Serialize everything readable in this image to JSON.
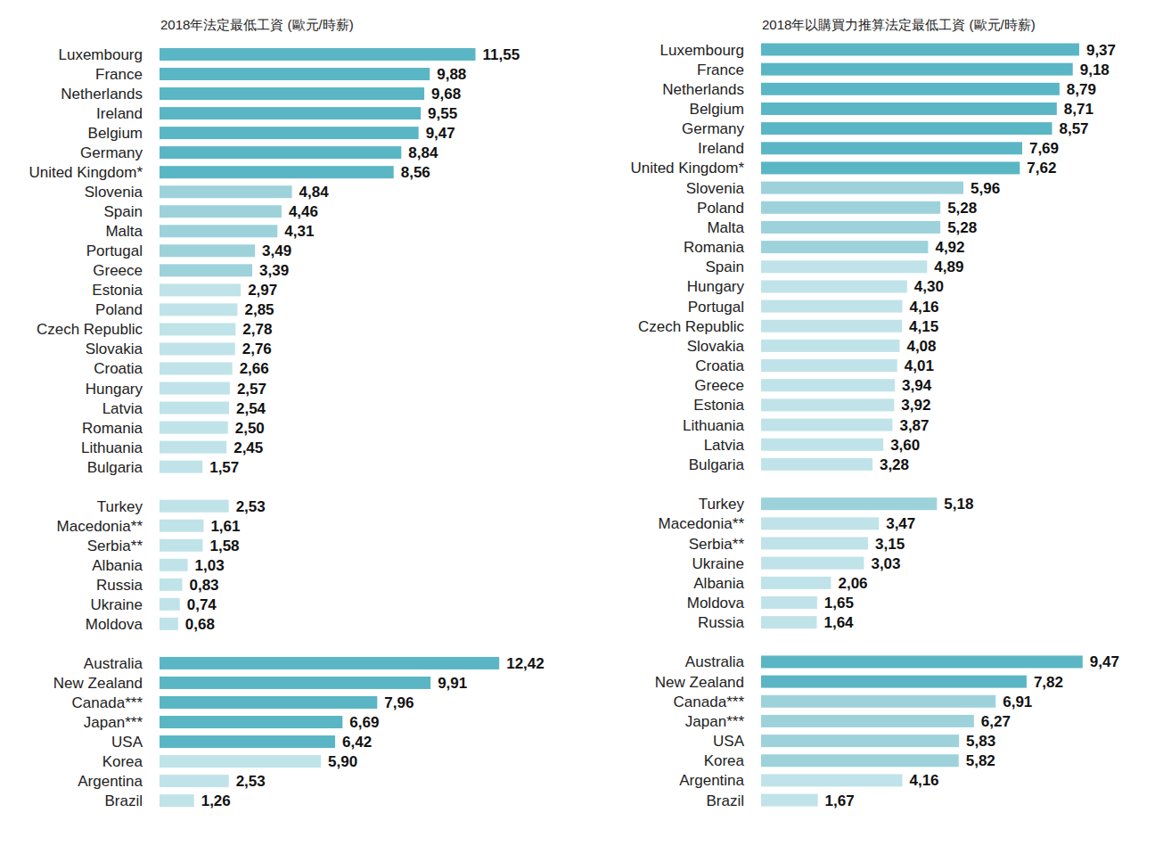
{
  "chart_data": [
    {
      "type": "bar",
      "orientation": "horizontal",
      "title": "2018年法定最低工資 (歐元/時薪)",
      "data_labels": true,
      "tick_labels": "y",
      "grid": false,
      "xlim": [
        0,
        13
      ],
      "categories": [
        "Luxembourg",
        "France",
        "Netherlands",
        "Ireland",
        "Belgium",
        "Germany",
        "United Kingdom*",
        "Slovenia",
        "Spain",
        "Malta",
        "Portugal",
        "Greece",
        "Estonia",
        "Poland",
        "Czech Republic",
        "Slovakia",
        "Croatia",
        "Hungary",
        "Latvia",
        "Romania",
        "Lithuania",
        "Bulgaria",
        null,
        "Turkey",
        "Macedonia**",
        "Serbia**",
        "Albania",
        "Russia",
        "Ukraine",
        "Moldova",
        null,
        "Australia",
        "New Zealand",
        "Canada***",
        "Japan***",
        "USA",
        "Korea",
        "Argentina",
        "Brazil"
      ],
      "values": [
        11.55,
        9.88,
        9.68,
        9.55,
        9.47,
        8.84,
        8.56,
        4.84,
        4.46,
        4.31,
        3.49,
        3.39,
        2.97,
        2.85,
        2.78,
        2.76,
        2.66,
        2.57,
        2.54,
        2.5,
        2.45,
        1.57,
        null,
        2.53,
        1.61,
        1.58,
        1.03,
        0.83,
        0.74,
        0.68,
        null,
        12.42,
        9.91,
        7.96,
        6.69,
        6.42,
        5.9,
        2.53,
        1.26
      ],
      "value_labels": [
        "11,55",
        "9,88",
        "9,68",
        "9,55",
        "9,47",
        "8,84",
        "8,56",
        "4,84",
        "4,46",
        "4,31",
        "3,49",
        "3,39",
        "2,97",
        "2,85",
        "2,78",
        "2,76",
        "2,66",
        "2,57",
        "2,54",
        "2,50",
        "2,45",
        "1,57",
        null,
        "2,53",
        "1,61",
        "1,58",
        "1,03",
        "0,83",
        "0,74",
        "0,68",
        null,
        "12,42",
        "9,91",
        "7,96",
        "6,69",
        "6,42",
        "5,90",
        "2,53",
        "1,26"
      ],
      "colors": [
        "#5ab6c4",
        "#5ab6c4",
        "#5ab6c4",
        "#5ab6c4",
        "#5ab6c4",
        "#5ab6c4",
        "#5ab6c4",
        "#9dd2db",
        "#9dd2db",
        "#9dd2db",
        "#9dd2db",
        "#9dd2db",
        "#bfe3e9",
        "#bfe3e9",
        "#bfe3e9",
        "#bfe3e9",
        "#bfe3e9",
        "#bfe3e9",
        "#bfe3e9",
        "#bfe3e9",
        "#bfe3e9",
        "#bfe3e9",
        null,
        "#bfe3e9",
        "#bfe3e9",
        "#bfe3e9",
        "#bfe3e9",
        "#bfe3e9",
        "#bfe3e9",
        "#bfe3e9",
        null,
        "#5ab6c4",
        "#5ab6c4",
        "#5ab6c4",
        "#5ab6c4",
        "#5ab6c4",
        "#bfe3e9",
        "#bfe3e9",
        "#bfe3e9"
      ]
    },
    {
      "type": "bar",
      "orientation": "horizontal",
      "title": "2018年以購買力推算法定最低工資 (歐元/時薪)",
      "data_labels": true,
      "tick_labels": "y",
      "grid": false,
      "xlim": [
        0,
        10.5
      ],
      "categories": [
        "Luxembourg",
        "France",
        "Netherlands",
        "Belgium",
        "Germany",
        "Ireland",
        "United Kingdom*",
        "Slovenia",
        "Poland",
        "Malta",
        "Romania",
        "Spain",
        "Hungary",
        "Portugal",
        "Czech Republic",
        "Slovakia",
        "Croatia",
        "Greece",
        "Estonia",
        "Lithuania",
        "Latvia",
        "Bulgaria",
        null,
        "Turkey",
        "Macedonia**",
        "Serbia**",
        "Ukraine",
        "Albania",
        "Moldova",
        "Russia",
        null,
        "Australia",
        "New Zealand",
        "Canada***",
        "Japan***",
        "USA",
        "Korea",
        "Argentina",
        "Brazil"
      ],
      "values": [
        9.37,
        9.18,
        8.79,
        8.71,
        8.57,
        7.69,
        7.62,
        5.96,
        5.28,
        5.28,
        4.92,
        4.89,
        4.3,
        4.16,
        4.15,
        4.08,
        4.01,
        3.94,
        3.92,
        3.87,
        3.6,
        3.28,
        null,
        5.18,
        3.47,
        3.15,
        3.03,
        2.06,
        1.65,
        1.64,
        null,
        9.47,
        7.82,
        6.91,
        6.27,
        5.83,
        5.82,
        4.16,
        1.67
      ],
      "value_labels": [
        "9,37",
        "9,18",
        "8,79",
        "8,71",
        "8,57",
        "7,69",
        "7,62",
        "5,96",
        "5,28",
        "5,28",
        "4,92",
        "4,89",
        "4,30",
        "4,16",
        "4,15",
        "4,08",
        "4,01",
        "3,94",
        "3,92",
        "3,87",
        "3,60",
        "3,28",
        null,
        "5,18",
        "3,47",
        "3,15",
        "3,03",
        "2,06",
        "1,65",
        "1,64",
        null,
        "9,47",
        "7,82",
        "6,91",
        "6,27",
        "5,83",
        "5,82",
        "4,16",
        "1,67"
      ],
      "colors": [
        "#5ab6c4",
        "#5ab6c4",
        "#5ab6c4",
        "#5ab6c4",
        "#5ab6c4",
        "#5ab6c4",
        "#5ab6c4",
        "#9dd2db",
        "#9dd2db",
        "#9dd2db",
        "#9dd2db",
        "#bfe3e9",
        "#bfe3e9",
        "#bfe3e9",
        "#bfe3e9",
        "#bfe3e9",
        "#bfe3e9",
        "#bfe3e9",
        "#bfe3e9",
        "#bfe3e9",
        "#bfe3e9",
        "#bfe3e9",
        null,
        "#9dd2db",
        "#bfe3e9",
        "#bfe3e9",
        "#bfe3e9",
        "#bfe3e9",
        "#bfe3e9",
        "#bfe3e9",
        null,
        "#5ab6c4",
        "#5ab6c4",
        "#9dd2db",
        "#9dd2db",
        "#9dd2db",
        "#9dd2db",
        "#bfe3e9",
        "#bfe3e9"
      ]
    }
  ]
}
